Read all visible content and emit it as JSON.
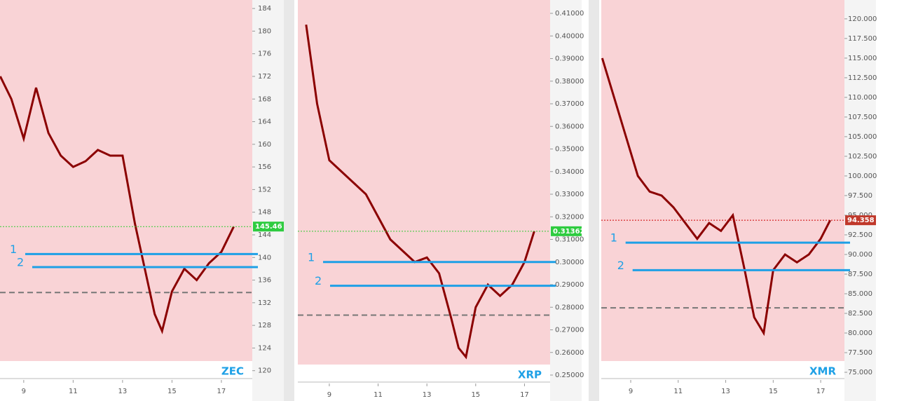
{
  "chart_data": [
    {
      "type": "line",
      "symbol": "ZEC",
      "x": [
        8.05,
        8.5,
        9,
        9.5,
        10,
        10.5,
        11,
        11.5,
        12,
        12.5,
        13,
        13.5,
        14,
        14.3,
        14.6,
        15,
        15.5,
        16,
        16.5,
        17,
        17.5
      ],
      "series": [
        {
          "color": "#8b0000",
          "values": [
            172,
            168,
            161,
            170,
            162,
            158,
            156,
            157,
            159,
            158,
            158,
            146,
            136,
            130,
            127,
            134,
            138,
            136,
            139,
            141,
            145.46
          ]
        }
      ],
      "levels": [
        {
          "label": "1",
          "value": 140.6
        },
        {
          "label": "2",
          "value": 138.3
        }
      ],
      "reference_line": 133.8,
      "price": 145.46,
      "xlim": [
        8.04,
        18.25
      ],
      "ylim": [
        118.6,
        185.5
      ],
      "xticks": [
        9,
        11,
        13,
        15,
        17
      ],
      "yticks": [
        184,
        180,
        176,
        172,
        168,
        164,
        160,
        156,
        152,
        148,
        144,
        140,
        136,
        132,
        128,
        124,
        120
      ]
    },
    {
      "type": "line",
      "symbol": "XRP",
      "x": [
        8.05,
        8.5,
        9,
        9.5,
        10,
        10.5,
        11,
        11.5,
        12,
        12.5,
        13,
        13.5,
        14,
        14.3,
        14.6,
        15,
        15.5,
        16,
        16.5,
        17,
        17.4
      ],
      "series": [
        {
          "color": "#8b0000",
          "values": [
            0.405,
            0.37,
            0.345,
            0.34,
            0.335,
            0.33,
            0.32,
            0.31,
            0.305,
            0.3,
            0.302,
            0.295,
            0.275,
            0.262,
            0.258,
            0.28,
            0.29,
            0.285,
            0.29,
            0.3,
            0.31362
          ]
        }
      ],
      "levels": [
        {
          "label": "1",
          "value": 0.3
        },
        {
          "label": "2",
          "value": 0.2895
        }
      ],
      "reference_line": 0.2765,
      "price": 0.31362,
      "xlim": [
        7.71,
        18.05
      ],
      "ylim": [
        0.2469,
        0.4159
      ],
      "xticks": [
        9,
        11,
        13,
        15,
        17
      ],
      "yticks": [
        {
          "value": 0.41,
          "label": "0.41000"
        },
        {
          "value": 0.4,
          "label": "0.40000"
        },
        {
          "value": 0.39,
          "label": "0.39000"
        },
        {
          "value": 0.38,
          "label": "0.38000"
        },
        {
          "value": 0.37,
          "label": "0.37000"
        },
        {
          "value": 0.36,
          "label": "0.36000"
        },
        {
          "value": 0.35,
          "label": "0.35000"
        },
        {
          "value": 0.34,
          "label": "0.34000"
        },
        {
          "value": 0.33,
          "label": "0.33000"
        },
        {
          "value": 0.32,
          "label": "0.32000"
        },
        {
          "value": 0.31,
          "label": "0.31000"
        },
        {
          "value": 0.3,
          "label": "0.30000"
        },
        {
          "value": 0.29,
          "label": "0.29000"
        },
        {
          "value": 0.28,
          "label": "0.28000"
        },
        {
          "value": 0.27,
          "label": "0.27000"
        },
        {
          "value": 0.26,
          "label": "0.26000"
        },
        {
          "value": 0.25,
          "label": "0.25000"
        }
      ]
    },
    {
      "type": "line",
      "symbol": "XMR",
      "x": [
        7.8,
        8.3,
        8.8,
        9.3,
        9.8,
        10.3,
        10.8,
        11.3,
        11.8,
        12.3,
        12.8,
        13.3,
        13.8,
        14.2,
        14.6,
        15,
        15.5,
        16,
        16.5,
        17,
        17.4
      ],
      "series": [
        {
          "color": "#8b0000",
          "values": [
            115,
            110,
            105,
            100,
            98,
            97.5,
            96,
            94,
            92,
            94,
            93,
            95,
            88,
            82,
            80,
            88,
            90,
            89,
            90,
            92,
            94.358
          ]
        }
      ],
      "levels": [
        {
          "label": "1",
          "value": 91.5
        },
        {
          "label": "2",
          "value": 88
        }
      ],
      "reference_line": 83.2,
      "price": 94.358,
      "xlim": [
        7.76,
        18.0
      ],
      "ylim": [
        74.2,
        122.4
      ],
      "xticks": [
        9,
        11,
        13,
        15,
        17
      ],
      "yticks": [
        {
          "value": 120,
          "label": "120.000"
        },
        {
          "value": 117.5,
          "label": "117.500"
        },
        {
          "value": 115,
          "label": "115.000"
        },
        {
          "value": 112.5,
          "label": "112.500"
        },
        {
          "value": 110,
          "label": "110.000"
        },
        {
          "value": 107.5,
          "label": "107.500"
        },
        {
          "value": 105,
          "label": "105.000"
        },
        {
          "value": 102.5,
          "label": "102.500"
        },
        {
          "value": 100,
          "label": "100.000"
        },
        {
          "value": 97.5,
          "label": "97.500"
        },
        {
          "value": 95,
          "label": "95.000"
        },
        {
          "value": 92.5,
          "label": "92.500"
        },
        {
          "value": 90,
          "label": "90.000"
        },
        {
          "value": 87.5,
          "label": "87.500"
        },
        {
          "value": 85,
          "label": "85.000"
        },
        {
          "value": 82.5,
          "label": "82.500"
        },
        {
          "value": 80,
          "label": "80.000"
        },
        {
          "value": 77.5,
          "label": "77.500"
        },
        {
          "value": 75,
          "label": "75.000"
        }
      ]
    }
  ]
}
